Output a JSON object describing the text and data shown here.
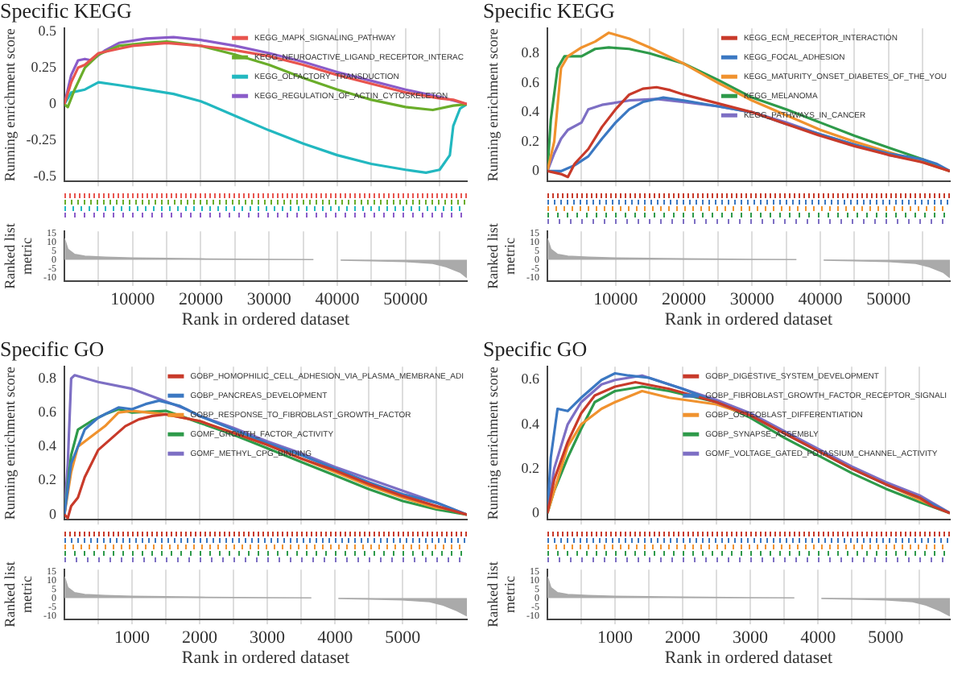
{
  "chart_data": [
    {
      "type": "line",
      "title": "Specific KEGG",
      "ylabel": "Running enrichment score",
      "legend": "top right",
      "grid": "x",
      "tick_labels": "y",
      "xlim": [
        0,
        59000
      ],
      "xticks": [
        {
          "value": 5000,
          "label": null
        },
        10000,
        {
          "value": 15000,
          "label": null
        },
        20000,
        {
          "value": 25000,
          "label": null
        },
        30000,
        {
          "value": 35000,
          "label": null
        },
        40000,
        {
          "value": 45000,
          "label": null
        },
        50000,
        {
          "value": 55000,
          "label": null
        }
      ],
      "ylim": [
        -0.53,
        0.52
      ],
      "yticks": [
        -0.5,
        -0.25,
        0,
        0.25,
        0.5
      ],
      "series": [
        {
          "name": "KEGG_MAPK_SIGNALING_PATHWAY",
          "color": "#e8544e",
          "x": [
            0,
            1000,
            2000,
            3000,
            5000,
            8000,
            10000,
            15000,
            20000,
            25000,
            30000,
            35000,
            40000,
            45000,
            50000,
            55000,
            57000,
            59000
          ],
          "values": [
            0,
            0.15,
            0.25,
            0.27,
            0.35,
            0.38,
            0.4,
            0.42,
            0.4,
            0.37,
            0.33,
            0.27,
            0.2,
            0.14,
            0.08,
            0.04,
            0.03,
            0
          ]
        },
        {
          "name": "KEGG_NEUROACTIVE_LIGAND_RECEPTOR_INTERAC",
          "color": "#6aad2a",
          "x": [
            0,
            500,
            1500,
            3000,
            5000,
            8000,
            12000,
            15000,
            20000,
            25000,
            30000,
            35000,
            40000,
            45000,
            50000,
            54000,
            57000,
            59000
          ],
          "values": [
            0,
            -0.02,
            0.1,
            0.25,
            0.34,
            0.4,
            0.42,
            0.43,
            0.4,
            0.34,
            0.27,
            0.18,
            0.1,
            0.03,
            -0.02,
            -0.04,
            -0.01,
            0
          ]
        },
        {
          "name": "KEGG_OLFACTORY_TRANSDUCTION",
          "color": "#22b8c0",
          "x": [
            0,
            1000,
            3000,
            5000,
            8000,
            12000,
            16000,
            20000,
            25000,
            30000,
            35000,
            40000,
            45000,
            50000,
            53000,
            55000,
            56500,
            57000,
            58000,
            59000
          ],
          "values": [
            0,
            0.08,
            0.1,
            0.15,
            0.13,
            0.1,
            0.07,
            0.02,
            -0.08,
            -0.18,
            -0.27,
            -0.35,
            -0.41,
            -0.45,
            -0.47,
            -0.45,
            -0.35,
            -0.15,
            -0.03,
            0
          ]
        },
        {
          "name": "KEGG_REGULATION_OF_ACTIN_CYTOSKELETON",
          "color": "#8a5cc9",
          "x": [
            0,
            1000,
            2000,
            3000,
            4000,
            6000,
            8000,
            12000,
            16000,
            20000,
            25000,
            30000,
            35000,
            40000,
            45000,
            50000,
            55000,
            59000
          ],
          "values": [
            0,
            0.2,
            0.3,
            0.31,
            0.3,
            0.37,
            0.42,
            0.45,
            0.46,
            0.44,
            0.4,
            0.35,
            0.29,
            0.22,
            0.16,
            0.1,
            0.05,
            0
          ]
        }
      ]
    },
    {
      "type": "area",
      "ylabel": "Ranked list metric",
      "xlabel": "Rank in ordered dataset",
      "grid": "x",
      "color": "#aaaaaa",
      "xlim": [
        0,
        59000
      ],
      "xticks": [
        {
          "value": 5000,
          "label": null
        },
        10000,
        {
          "value": 15000,
          "label": null
        },
        20000,
        {
          "value": 25000,
          "label": null
        },
        30000,
        {
          "value": 35000,
          "label": null
        },
        40000,
        {
          "value": 45000,
          "label": null
        },
        50000,
        {
          "value": 55000,
          "label": null
        }
      ],
      "ylim": [
        -12,
        16
      ],
      "yticks": [
        15,
        10,
        5,
        0,
        -5,
        -10
      ],
      "x": [
        0,
        500,
        1500,
        3000,
        6000,
        10000,
        20000,
        30000,
        36500,
        38500,
        40500,
        45000,
        50000,
        54000,
        56000,
        58000,
        59000
      ],
      "values": [
        12,
        6,
        3,
        2,
        1.5,
        1,
        0.5,
        0.2,
        0.1,
        null,
        -0.2,
        -0.5,
        -1,
        -2,
        -4,
        -7,
        -10
      ]
    },
    {
      "type": "line",
      "title": "Specific KEGG",
      "ylabel": "Running enrichment score",
      "legend": "top right",
      "grid": "x",
      "tick_labels": "y",
      "xlim": [
        0,
        59000
      ],
      "xticks": [
        {
          "value": 5000,
          "label": null
        },
        10000,
        {
          "value": 15000,
          "label": null
        },
        20000,
        {
          "value": 25000,
          "label": null
        },
        30000,
        {
          "value": 35000,
          "label": null
        },
        40000,
        {
          "value": 45000,
          "label": null
        },
        50000,
        {
          "value": 55000,
          "label": null
        }
      ],
      "ylim": [
        -0.07,
        0.97
      ],
      "yticks": [
        0,
        0.2,
        0.4,
        0.6,
        0.8
      ],
      "series": [
        {
          "name": "KEGG_ECM_RECEPTOR_INTERACTION",
          "color": "#c83a2a",
          "x": [
            0,
            2000,
            3000,
            4000,
            6000,
            8000,
            10000,
            12000,
            14000,
            16000,
            18000,
            20000,
            25000,
            30000,
            35000,
            40000,
            45000,
            50000,
            55000,
            59000
          ],
          "values": [
            0,
            -0.02,
            -0.04,
            0.05,
            0.15,
            0.3,
            0.42,
            0.52,
            0.56,
            0.57,
            0.55,
            0.52,
            0.46,
            0.4,
            0.32,
            0.24,
            0.17,
            0.11,
            0.06,
            0
          ]
        },
        {
          "name": "KEGG_FOCAL_ADHESION",
          "color": "#3b78c2",
          "x": [
            0,
            2000,
            4000,
            6000,
            8000,
            10000,
            12000,
            14000,
            17000,
            20000,
            25000,
            30000,
            35000,
            40000,
            45000,
            50000,
            55000,
            57000,
            59000
          ],
          "values": [
            0,
            0,
            0.04,
            0.1,
            0.22,
            0.33,
            0.42,
            0.47,
            0.5,
            0.48,
            0.44,
            0.4,
            0.32,
            0.25,
            0.18,
            0.12,
            0.08,
            0.05,
            0
          ]
        },
        {
          "name": "KEGG_MATURITY_ONSET_DIABETES_OF_THE_YOU",
          "color": "#f0922e",
          "x": [
            0,
            1000,
            2000,
            3000,
            5000,
            7000,
            9000,
            12000,
            15000,
            20000,
            25000,
            30000,
            35000,
            40000,
            45000,
            50000,
            55000,
            57000,
            59000
          ],
          "values": [
            0,
            0.2,
            0.7,
            0.78,
            0.84,
            0.88,
            0.94,
            0.9,
            0.84,
            0.73,
            0.6,
            0.48,
            0.38,
            0.28,
            0.2,
            0.13,
            0.06,
            0.03,
            0
          ]
        },
        {
          "name": "KEGG_MELANOMA",
          "color": "#2e9a4a",
          "x": [
            0,
            500,
            1500,
            2500,
            5000,
            7000,
            9000,
            12000,
            15000,
            20000,
            25000,
            30000,
            35000,
            40000,
            45000,
            50000,
            55000,
            59000
          ],
          "values": [
            0,
            0.35,
            0.7,
            0.78,
            0.78,
            0.83,
            0.84,
            0.83,
            0.8,
            0.73,
            0.62,
            0.5,
            0.42,
            0.33,
            0.24,
            0.16,
            0.08,
            0
          ]
        },
        {
          "name": "KEGG_PATHWAYS_IN_CANCER",
          "color": "#7d6fc4",
          "x": [
            0,
            1000,
            2000,
            3000,
            5000,
            6000,
            8000,
            12000,
            16000,
            20000,
            25000,
            30000,
            35000,
            40000,
            45000,
            50000,
            55000,
            59000
          ],
          "values": [
            0,
            0.12,
            0.22,
            0.28,
            0.33,
            0.42,
            0.45,
            0.48,
            0.49,
            0.47,
            0.44,
            0.4,
            0.33,
            0.25,
            0.18,
            0.11,
            0.07,
            0
          ]
        }
      ]
    },
    {
      "type": "area",
      "ylabel": "Ranked list metric",
      "xlabel": "Rank in ordered dataset",
      "grid": "x",
      "color": "#aaaaaa",
      "xlim": [
        0,
        59000
      ],
      "xticks": [
        {
          "value": 5000,
          "label": null
        },
        10000,
        {
          "value": 15000,
          "label": null
        },
        20000,
        {
          "value": 25000,
          "label": null
        },
        30000,
        {
          "value": 35000,
          "label": null
        },
        40000,
        {
          "value": 45000,
          "label": null
        },
        50000,
        {
          "value": 55000,
          "label": null
        }
      ],
      "ylim": [
        -12,
        16
      ],
      "yticks": [
        15,
        10,
        5,
        0,
        -5,
        -10
      ],
      "x": [
        0,
        500,
        1500,
        3000,
        6000,
        10000,
        20000,
        30000,
        36500,
        38500,
        40500,
        45000,
        50000,
        54000,
        56000,
        58000,
        59000
      ],
      "values": [
        12,
        6,
        3,
        2,
        1.5,
        1,
        0.5,
        0.2,
        0.1,
        null,
        -0.2,
        -0.5,
        -1,
        -2,
        -4,
        -7,
        -10
      ]
    },
    {
      "type": "line",
      "title": "Specific GO",
      "ylabel": "Running enrichment score",
      "legend": "top right",
      "grid": "x",
      "tick_labels": "y",
      "xlim": [
        0,
        5950
      ],
      "xticks": [
        {
          "value": 500,
          "label": null
        },
        1000,
        {
          "value": 1500,
          "label": null
        },
        2000,
        {
          "value": 2500,
          "label": null
        },
        3000,
        {
          "value": 3500,
          "label": null
        },
        4000,
        {
          "value": 4500,
          "label": null
        },
        5000,
        {
          "value": 5500,
          "label": null
        }
      ],
      "ylim": [
        -0.03,
        0.87
      ],
      "yticks": [
        0,
        0.2,
        0.4,
        0.6,
        0.8
      ],
      "series": [
        {
          "name": "GOBP_HOMOPHILIC_CELL_ADHESION_VIA_PLASMA_MEMBRANE_ADI",
          "color": "#c83a2a",
          "x": [
            0,
            50,
            100,
            200,
            300,
            500,
            700,
            900,
            1100,
            1300,
            1500,
            2000,
            2500,
            3000,
            3500,
            4000,
            4500,
            5000,
            5500,
            5950
          ],
          "values": [
            0,
            -0.02,
            0.05,
            0.1,
            0.22,
            0.38,
            0.45,
            0.52,
            0.56,
            0.58,
            0.59,
            0.55,
            0.48,
            0.41,
            0.33,
            0.26,
            0.18,
            0.11,
            0.05,
            0
          ]
        },
        {
          "name": "GOBP_PANCREAS_DEVELOPMENT",
          "color": "#3b78c2",
          "x": [
            0,
            100,
            300,
            500,
            800,
            1000,
            1200,
            1400,
            1700,
            2000,
            2500,
            3000,
            3500,
            4000,
            4500,
            5000,
            5500,
            5950
          ],
          "values": [
            0,
            0.3,
            0.5,
            0.57,
            0.63,
            0.62,
            0.65,
            0.67,
            0.64,
            0.58,
            0.5,
            0.42,
            0.35,
            0.27,
            0.19,
            0.12,
            0.07,
            0
          ]
        },
        {
          "name": "GOBP_RESPONSE_TO_FIBROBLAST_GROWTH_FACTOR",
          "color": "#f0922e",
          "x": [
            0,
            100,
            200,
            400,
            600,
            800,
            1000,
            1500,
            2000,
            2500,
            3000,
            3500,
            4000,
            4500,
            5000,
            5500,
            5700,
            5950
          ],
          "values": [
            0,
            0.25,
            0.4,
            0.46,
            0.52,
            0.6,
            0.61,
            0.59,
            0.55,
            0.48,
            0.41,
            0.33,
            0.25,
            0.17,
            0.1,
            0.04,
            0.03,
            0
          ]
        },
        {
          "name": "GOMF_GROWTH_FACTOR_ACTIVITY",
          "color": "#2e9a4a",
          "x": [
            0,
            100,
            200,
            400,
            600,
            800,
            1000,
            1500,
            2000,
            2500,
            3000,
            3500,
            4000,
            4500,
            5000,
            5500,
            5950
          ],
          "values": [
            0,
            0.35,
            0.5,
            0.55,
            0.59,
            0.62,
            0.6,
            0.61,
            0.54,
            0.47,
            0.39,
            0.31,
            0.23,
            0.15,
            0.08,
            0.03,
            0
          ]
        },
        {
          "name": "GOMF_METHYL_CPG_BINDING",
          "color": "#7d6fc4",
          "x": [
            0,
            50,
            100,
            150,
            500,
            1000,
            1400,
            1800,
            2000,
            2500,
            3000,
            3500,
            4000,
            4500,
            5000,
            5500,
            5950
          ],
          "values": [
            0,
            0.3,
            0.8,
            0.82,
            0.78,
            0.74,
            0.68,
            0.62,
            0.58,
            0.51,
            0.43,
            0.36,
            0.28,
            0.21,
            0.14,
            0.07,
            0
          ]
        }
      ]
    },
    {
      "type": "area",
      "ylabel": "Ranked list metric",
      "xlabel": "Rank in ordered dataset",
      "grid": "x",
      "color": "#aaaaaa",
      "xlim": [
        0,
        5950
      ],
      "xticks": [
        {
          "value": 500,
          "label": null
        },
        1000,
        {
          "value": 1500,
          "label": null
        },
        2000,
        {
          "value": 2500,
          "label": null
        },
        3000,
        {
          "value": 3500,
          "label": null
        },
        4000,
        {
          "value": 4500,
          "label": null
        },
        5000,
        {
          "value": 5500,
          "label": null
        }
      ],
      "ylim": [
        -12,
        16
      ],
      "yticks": [
        15,
        10,
        5,
        0,
        -5,
        -10
      ],
      "x": [
        0,
        50,
        150,
        300,
        600,
        1000,
        2000,
        3000,
        3650,
        3850,
        4050,
        4500,
        5000,
        5400,
        5600,
        5800,
        5950
      ],
      "values": [
        12,
        6,
        3,
        2,
        1.5,
        1,
        0.5,
        0.2,
        0.1,
        null,
        -0.2,
        -0.5,
        -1,
        -2,
        -4,
        -7,
        -10
      ]
    },
    {
      "type": "line",
      "title": "Specific GO",
      "ylabel": "Running enrichment score",
      "legend": "top right",
      "grid": "x",
      "tick_labels": "y",
      "xlim": [
        0,
        5950
      ],
      "xticks": [
        {
          "value": 500,
          "label": null
        },
        1000,
        {
          "value": 1500,
          "label": null
        },
        2000,
        {
          "value": 2500,
          "label": null
        },
        3000,
        {
          "value": 3500,
          "label": null
        },
        4000,
        {
          "value": 4500,
          "label": null
        },
        5000,
        {
          "value": 5500,
          "label": null
        }
      ],
      "ylim": [
        -0.03,
        0.66
      ],
      "yticks": [
        0,
        0.2,
        0.4,
        0.6
      ],
      "series": [
        {
          "name": "GOBP_DIGESTIVE_SYSTEM_DEVELOPMENT",
          "color": "#c83a2a",
          "x": [
            0,
            100,
            300,
            500,
            700,
            1000,
            1300,
            1800,
            2500,
            3000,
            3500,
            4000,
            4500,
            5000,
            5500,
            5700,
            5950
          ],
          "values": [
            0,
            0.15,
            0.32,
            0.45,
            0.53,
            0.57,
            0.59,
            0.56,
            0.5,
            0.44,
            0.36,
            0.28,
            0.2,
            0.13,
            0.07,
            0.03,
            0
          ]
        },
        {
          "name": "GOBP_FIBROBLAST_GROWTH_FACTOR_RECEPTOR_SIGNALI",
          "color": "#3b78c2",
          "x": [
            0,
            50,
            150,
            300,
            500,
            800,
            1000,
            1200,
            1500,
            2000,
            2500,
            3000,
            3500,
            4000,
            4500,
            5000,
            5500,
            5950
          ],
          "values": [
            0,
            0.25,
            0.47,
            0.46,
            0.52,
            0.6,
            0.63,
            0.62,
            0.61,
            0.56,
            0.5,
            0.44,
            0.36,
            0.28,
            0.2,
            0.13,
            0.07,
            0
          ]
        },
        {
          "name": "GOBP_OSTEOBLAST_DIFFERENTIATION",
          "color": "#f0922e",
          "x": [
            0,
            100,
            300,
            500,
            800,
            1000,
            1400,
            1800,
            2500,
            3000,
            3500,
            4000,
            4500,
            5000,
            5500,
            5950
          ],
          "values": [
            0,
            0.1,
            0.3,
            0.4,
            0.47,
            0.5,
            0.55,
            0.52,
            0.49,
            0.44,
            0.36,
            0.28,
            0.2,
            0.13,
            0.06,
            0
          ]
        },
        {
          "name": "GOBP_SYNAPSE_ASSEMBLY",
          "color": "#2e9a4a",
          "x": [
            0,
            100,
            300,
            500,
            700,
            1000,
            1400,
            1800,
            2500,
            3000,
            3500,
            4000,
            4500,
            5000,
            5500,
            5950
          ],
          "values": [
            0,
            0.1,
            0.25,
            0.38,
            0.5,
            0.55,
            0.57,
            0.55,
            0.5,
            0.43,
            0.34,
            0.26,
            0.18,
            0.11,
            0.05,
            0
          ]
        },
        {
          "name": "GOMF_VOLTAGE_GATED_POTASSIUM_CHANNEL_ACTIVITY",
          "color": "#7d6fc4",
          "x": [
            0,
            100,
            300,
            500,
            800,
            1000,
            1400,
            1800,
            2500,
            3000,
            3500,
            4000,
            4500,
            5000,
            5500,
            5950
          ],
          "values": [
            0,
            0.2,
            0.4,
            0.5,
            0.58,
            0.6,
            0.62,
            0.58,
            0.51,
            0.45,
            0.37,
            0.29,
            0.21,
            0.14,
            0.08,
            0
          ]
        }
      ]
    },
    {
      "type": "area",
      "ylabel": "Ranked list metric",
      "xlabel": "Rank in ordered dataset",
      "grid": "x",
      "color": "#aaaaaa",
      "xlim": [
        0,
        5950
      ],
      "xticks": [
        {
          "value": 500,
          "label": null
        },
        1000,
        {
          "value": 1500,
          "label": null
        },
        2000,
        {
          "value": 2500,
          "label": null
        },
        3000,
        {
          "value": 3500,
          "label": null
        },
        4000,
        {
          "value": 4500,
          "label": null
        },
        5000,
        {
          "value": 5500,
          "label": null
        }
      ],
      "ylim": [
        -12,
        16
      ],
      "yticks": [
        15,
        10,
        5,
        0,
        -5,
        -10
      ],
      "x": [
        0,
        50,
        150,
        300,
        600,
        1000,
        2000,
        3000,
        3650,
        3850,
        4050,
        4500,
        5000,
        5400,
        5600,
        5800,
        5950
      ],
      "values": [
        12,
        6,
        3,
        2,
        1.5,
        1,
        0.5,
        0.2,
        0.1,
        null,
        -0.2,
        -0.5,
        -1,
        -2,
        -4,
        -7,
        -10
      ]
    }
  ]
}
